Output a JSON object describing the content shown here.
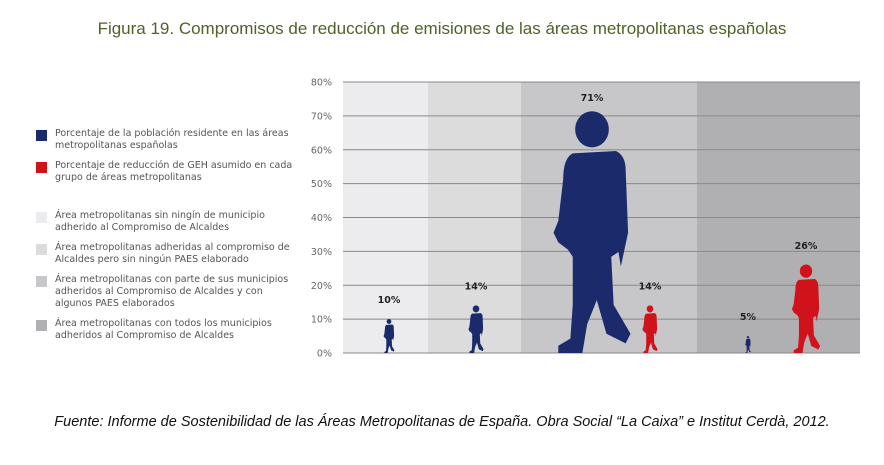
{
  "title": "Figura 19. Compromisos de reducción de emisiones de las áreas metropolitanas españolas",
  "source": "Fuente: Informe de Sostenibilidad de las Áreas Metropolitanas de España. Obra Social “La Caixa” e Institut Cerdà, 2012.",
  "chart_data": {
    "type": "pictograph",
    "ylim": [
      0,
      80
    ],
    "yticks": [
      "0%",
      "10%",
      "20%",
      "30%",
      "40%",
      "50%",
      "60%",
      "70%",
      "80%"
    ],
    "grid": true,
    "legend_placement": "left",
    "series_legend": [
      {
        "name": "Porcentaje de la población residente en las áreas metropolitanas españolas",
        "color": "#1b2a6b"
      },
      {
        "name": "Porcentaje de reducción de GEH asumido en cada grupo de áreas metropolitanas",
        "color": "#d0121b"
      }
    ],
    "groups": [
      {
        "name": "Área metropolitanas sin ningín de municipio adherido al Compromiso de Alcaldes",
        "color": "#ececee",
        "population": 10,
        "reduction": null
      },
      {
        "name": "Área metropolitanas adheridas al compromiso de Alcaldes pero sin ningún PAES elaborado",
        "color": "#dcdcdd",
        "population": 14,
        "reduction": null
      },
      {
        "name": "Área metropolitanas con parte de sus municipios adheridos al Compromiso de Alcaldes y con algunos PAES elaborados",
        "color": "#c7c7c9",
        "population": 71,
        "reduction": 14
      },
      {
        "name": "Área metropolitanas con todos los municipios adheridos al Compromiso de Alcaldes",
        "color": "#b0b0b2",
        "population": 5,
        "reduction": 26
      }
    ],
    "labels": [
      "10%",
      "14%",
      "71%",
      "14%",
      "5%",
      "26%"
    ]
  }
}
